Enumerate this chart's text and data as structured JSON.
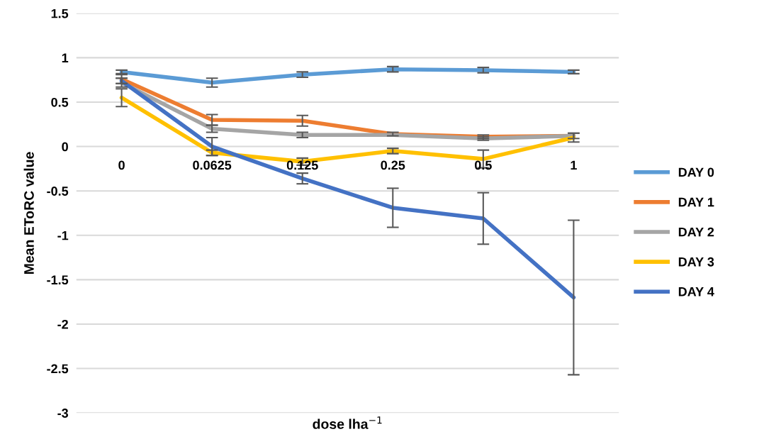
{
  "chart_data": {
    "type": "line",
    "xlabel": "dose lha$^{−1}$",
    "ylabel": "Mean EToRC value",
    "categories": [
      "0",
      "0.0625",
      "0.125",
      "0.25",
      "0.5",
      "1"
    ],
    "ylim": [
      -3,
      1.5
    ],
    "yticks": [
      {
        "value": -3,
        "label": "-3"
      },
      {
        "value": -2.5,
        "label": "-2.5"
      },
      {
        "value": -2,
        "label": "-2"
      },
      {
        "value": -1.5,
        "label": "-1.5"
      },
      {
        "value": -1,
        "label": "-1"
      },
      {
        "value": -0.5,
        "label": "-0.5"
      },
      0,
      0.5,
      1,
      1.5
    ],
    "grid": "y",
    "legend": "right",
    "marker": "none",
    "line_style": "solid",
    "series": [
      {
        "name": "DAY 0",
        "color": "#5b9bd5",
        "values": [
          0.84,
          0.72,
          0.81,
          0.87,
          0.86,
          0.84
        ],
        "errors": [
          0.02,
          0.05,
          0.03,
          0.03,
          0.03,
          0.02
        ]
      },
      {
        "name": "DAY 1",
        "color": "#ed7d31",
        "values": [
          0.76,
          0.3,
          0.29,
          0.14,
          0.11,
          0.12
        ],
        "errors": [
          0.05,
          0.06,
          0.06,
          0.02,
          0.02,
          0.03
        ]
      },
      {
        "name": "DAY 2",
        "color": "#a5a5a5",
        "values": [
          0.72,
          0.2,
          0.13,
          0.13,
          0.09,
          0.12
        ],
        "errors": [
          0.05,
          0.04,
          0.03,
          null,
          0.02,
          null
        ]
      },
      {
        "name": "DAY 3",
        "color": "#ffc000",
        "values": [
          0.55,
          -0.07,
          -0.17,
          -0.05,
          -0.14,
          0.1
        ],
        "errors": [
          0.1,
          0.03,
          0.04,
          0.03,
          0.1,
          0.05
        ]
      },
      {
        "name": "DAY 4",
        "color": "#4472c4",
        "values": [
          0.74,
          0.0,
          -0.36,
          -0.69,
          -0.81,
          -1.7
        ],
        "errors": [
          0.03,
          0.1,
          0.06,
          0.22,
          0.29,
          0.87
        ]
      }
    ]
  }
}
